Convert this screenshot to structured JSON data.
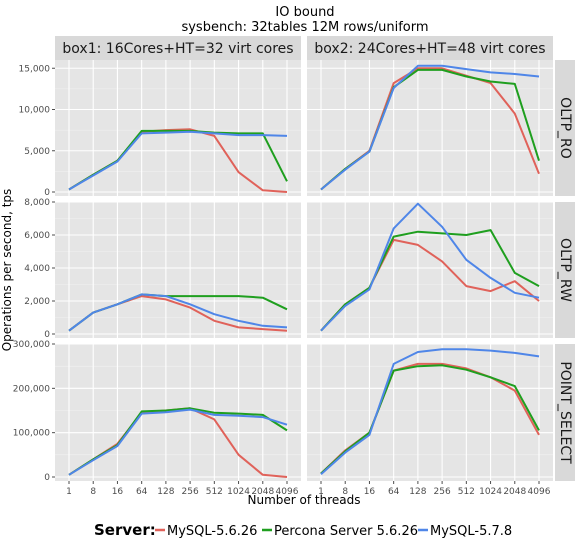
{
  "chart_data": {
    "type": "line",
    "title": "IO bound",
    "subtitle": "sysbench: 32tables 12M rows/uniform",
    "xlabel": "Number of threads",
    "ylabel": "Operations per second, tps",
    "x": [
      "1",
      "8",
      "16",
      "64",
      "128",
      "256",
      "512",
      "1024",
      "2048",
      "4096"
    ],
    "columns": [
      "box1: 16Cores+HT=32 virt cores",
      "box2: 24Cores+HT=48 virt cores"
    ],
    "rows": [
      {
        "name": "OLTP_RO",
        "ylim": [
          0,
          16000
        ],
        "ticks": [
          0,
          5000,
          10000,
          15000
        ],
        "tick_labels": [
          "0",
          "5,000",
          "10,000",
          "15,000"
        ]
      },
      {
        "name": "OLTP_RW",
        "ylim": [
          0,
          8000
        ],
        "ticks": [
          0,
          2000,
          4000,
          6000,
          8000
        ],
        "tick_labels": [
          "0",
          "2,000",
          "4,000",
          "6,000",
          "8,000"
        ]
      },
      {
        "name": "POINT_SELECT",
        "ylim": [
          0,
          300000
        ],
        "ticks": [
          0,
          100000,
          200000,
          300000
        ],
        "tick_labels": [
          "0",
          "100,000",
          "200,000",
          "300,000"
        ]
      }
    ],
    "legend": {
      "title": "Server:",
      "position": "bottom",
      "items": [
        "MySQL-5.6.26",
        "Percona Server 5.6.26",
        "MySQL-5.7.8"
      ]
    },
    "colors": {
      "MySQL-5.6.26": "#e0625a",
      "Percona Server 5.6.26": "#1f9f1f",
      "MySQL-5.7.8": "#4f86e8"
    },
    "panels": [
      {
        "row": "OLTP_RO",
        "column": "box1: 16Cores+HT=32 virt cores",
        "series": [
          {
            "name": "MySQL-5.6.26",
            "values": [
              300,
              2100,
              3800,
              7300,
              7500,
              7600,
              6800,
              2400,
              200,
              0
            ]
          },
          {
            "name": "Percona Server 5.6.26",
            "values": [
              300,
              2100,
              3800,
              7400,
              7400,
              7400,
              7200,
              7100,
              7100,
              1300
            ]
          },
          {
            "name": "MySQL-5.7.8",
            "values": [
              300,
              2000,
              3700,
              7100,
              7200,
              7300,
              7100,
              6900,
              6900,
              6800
            ]
          }
        ]
      },
      {
        "row": "OLTP_RO",
        "column": "box2: 24Cores+HT=48 virt cores",
        "series": [
          {
            "name": "MySQL-5.6.26",
            "values": [
              300,
              2800,
              5000,
              13200,
              15000,
              15000,
              14100,
              13200,
              9500,
              2200
            ]
          },
          {
            "name": "Percona Server 5.6.26",
            "values": [
              300,
              2800,
              4900,
              12700,
              14800,
              14800,
              14000,
              13400,
              13100,
              3800
            ]
          },
          {
            "name": "MySQL-5.7.8",
            "values": [
              300,
              2700,
              4900,
              12600,
              15300,
              15300,
              14900,
              14500,
              14300,
              14000
            ]
          }
        ]
      },
      {
        "row": "OLTP_RW",
        "column": "box1: 16Cores+HT=32 virt cores",
        "series": [
          {
            "name": "MySQL-5.6.26",
            "values": [
              200,
              1300,
              1800,
              2300,
              2100,
              1600,
              800,
              400,
              300,
              200
            ]
          },
          {
            "name": "Percona Server 5.6.26",
            "values": [
              200,
              1300,
              1800,
              2400,
              2300,
              2300,
              2300,
              2300,
              2200,
              1500
            ]
          },
          {
            "name": "MySQL-5.7.8",
            "values": [
              200,
              1300,
              1800,
              2400,
              2300,
              1800,
              1200,
              800,
              500,
              400
            ]
          }
        ]
      },
      {
        "row": "OLTP_RW",
        "column": "box2: 24Cores+HT=48 virt cores",
        "series": [
          {
            "name": "MySQL-5.6.26",
            "values": [
              200,
              1800,
              2800,
              5700,
              5400,
              4400,
              2900,
              2600,
              3200,
              2000
            ]
          },
          {
            "name": "Percona Server 5.6.26",
            "values": [
              200,
              1800,
              2800,
              5900,
              6200,
              6100,
              6000,
              6300,
              3700,
              2900
            ]
          },
          {
            "name": "MySQL-5.7.8",
            "values": [
              200,
              1700,
              2700,
              6400,
              7900,
              6500,
              4500,
              3400,
              2500,
              2200
            ]
          }
        ]
      },
      {
        "row": "POINT_SELECT",
        "column": "box1: 16Cores+HT=32 virt cores",
        "series": [
          {
            "name": "MySQL-5.6.26",
            "values": [
              5000,
              40000,
              75000,
              145000,
              150000,
              155000,
              130000,
              50000,
              5000,
              0
            ]
          },
          {
            "name": "Percona Server 5.6.26",
            "values": [
              5000,
              40000,
              72000,
              148000,
              150000,
              155000,
              145000,
              143000,
              140000,
              105000
            ]
          },
          {
            "name": "MySQL-5.7.8",
            "values": [
              5000,
              38000,
              70000,
              143000,
              146000,
              152000,
              140000,
              138000,
              135000,
              118000
            ]
          }
        ]
      },
      {
        "row": "POINT_SELECT",
        "column": "box2: 24Cores+HT=48 virt cores",
        "series": [
          {
            "name": "MySQL-5.6.26",
            "values": [
              8000,
              60000,
              100000,
              240000,
              255000,
              255000,
              245000,
              225000,
              195000,
              95000
            ]
          },
          {
            "name": "Percona Server 5.6.26",
            "values": [
              8000,
              58000,
              100000,
              240000,
              250000,
              252000,
              242000,
              225000,
              205000,
              105000
            ]
          },
          {
            "name": "MySQL-5.7.8",
            "values": [
              6000,
              55000,
              95000,
              255000,
              282000,
              288000,
              288000,
              285000,
              280000,
              272000
            ]
          }
        ]
      }
    ]
  }
}
